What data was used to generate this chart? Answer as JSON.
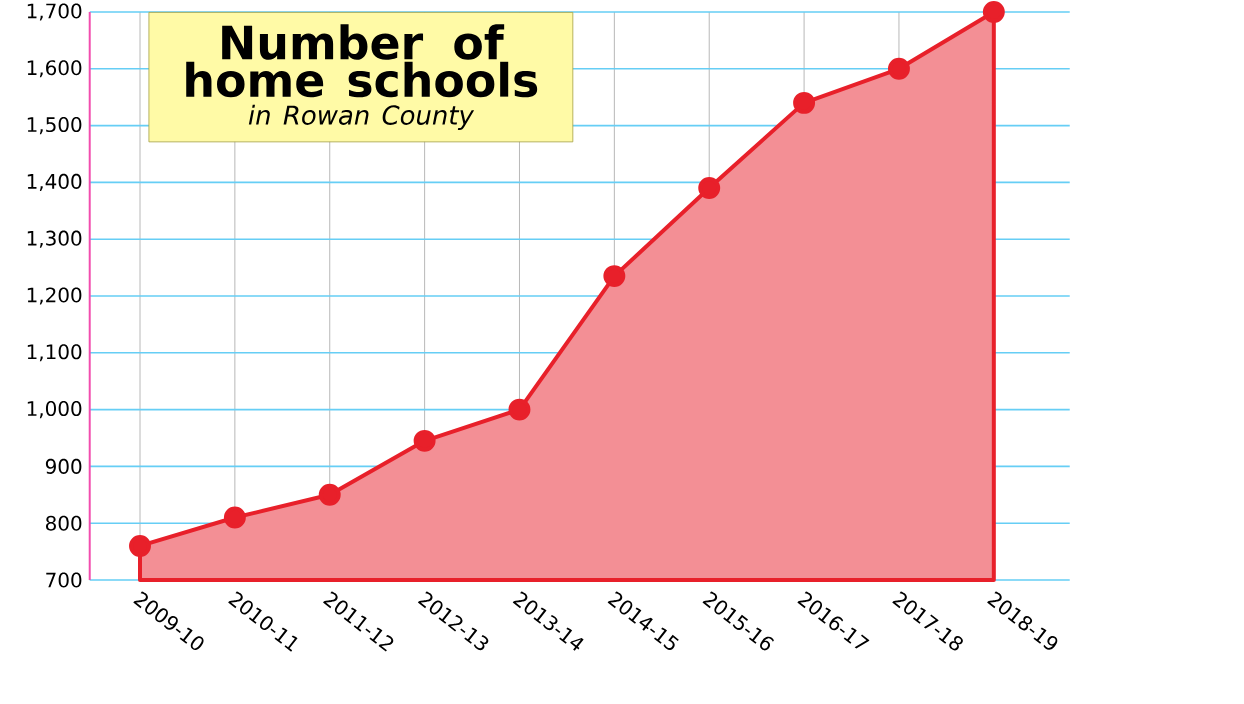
{
  "chart_data": {
    "type": "area",
    "title": "Number of home schools",
    "subtitle": "in Rowan County",
    "categories": [
      "2009-10",
      "2010-11",
      "2011-12",
      "2012-13",
      "2013-14",
      "2014-15",
      "2015-16",
      "2016-17",
      "2017-18",
      "2018-19"
    ],
    "series": [
      {
        "color": "#e8202a",
        "values": [
          760,
          810,
          850,
          945,
          1000,
          1235,
          1390,
          1540,
          1600,
          1700
        ]
      }
    ],
    "ylim": [
      700,
      1700
    ],
    "yticks": [
      {
        "value": 700,
        "label": "700"
      },
      {
        "value": 800,
        "label": "800"
      },
      {
        "value": 900,
        "label": "900"
      },
      {
        "value": 1000,
        "label": "1,000"
      },
      {
        "value": 1100,
        "label": "1,100"
      },
      {
        "value": 1200,
        "label": "1,200"
      },
      {
        "value": 1300,
        "label": "1,300"
      },
      {
        "value": 1400,
        "label": "1,400"
      },
      {
        "value": 1500,
        "label": "1,500"
      },
      {
        "value": 1600,
        "label": "1,600"
      },
      {
        "value": 1700,
        "label": "1,700"
      }
    ],
    "grid": true,
    "marker": "circle",
    "line_style": "solid"
  }
}
